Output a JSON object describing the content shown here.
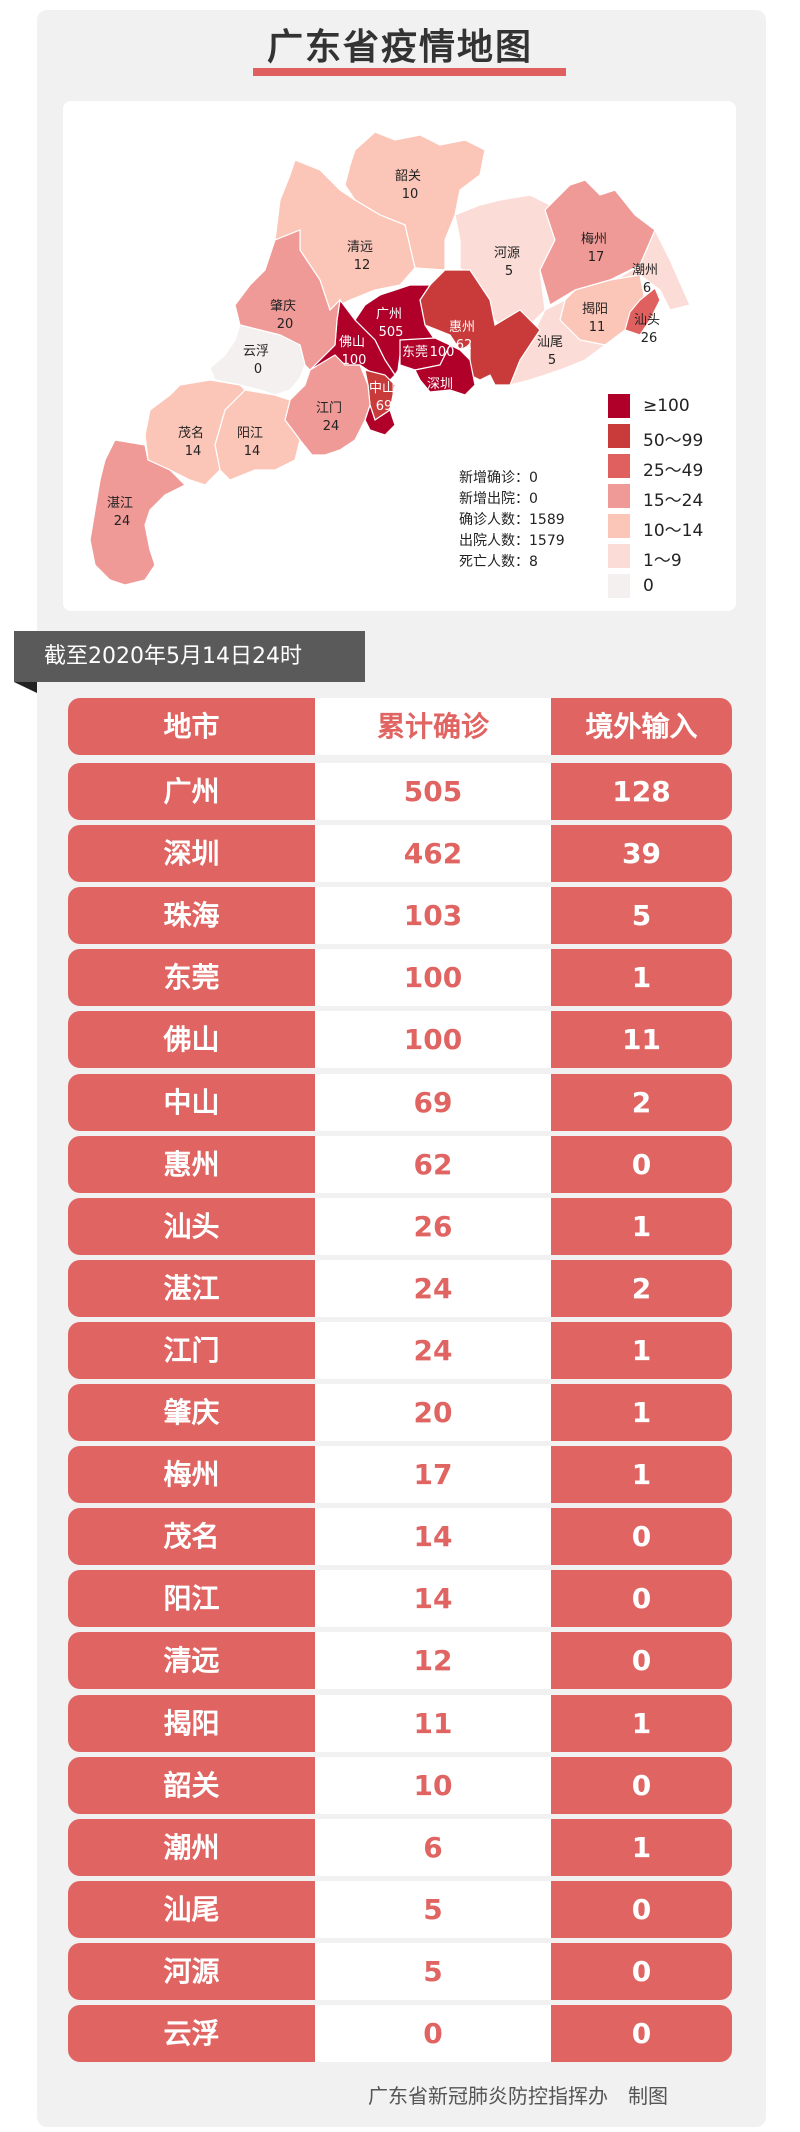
{
  "title": "广东省疫情地图",
  "map": {
    "regions": [
      {
        "name": "韶关",
        "value": "10",
        "level": 4
      },
      {
        "name": "清远",
        "value": "12",
        "level": 4
      },
      {
        "name": "河源",
        "value": "5",
        "level": 5
      },
      {
        "name": "梅州",
        "value": "17",
        "level": 3
      },
      {
        "name": "潮州",
        "value": "6",
        "level": 5
      },
      {
        "name": "揭阳",
        "value": "11",
        "level": 4
      },
      {
        "name": "汕头",
        "value": "26",
        "level": 2
      },
      {
        "name": "汕尾",
        "value": "5",
        "level": 5
      },
      {
        "name": "惠州",
        "value": "62",
        "level": 1
      },
      {
        "name": "广州",
        "value": "505",
        "level": 0
      },
      {
        "name": "东莞",
        "value": "100",
        "level": 0
      },
      {
        "name": "深圳",
        "value": "462",
        "level": 0
      },
      {
        "name": "佛山",
        "value": "100",
        "level": 0
      },
      {
        "name": "中山",
        "value": "69",
        "level": 1
      },
      {
        "name": "珠海",
        "value": "103",
        "level": 0
      },
      {
        "name": "江门",
        "value": "24",
        "level": 3
      },
      {
        "name": "肇庆",
        "value": "20",
        "level": 3
      },
      {
        "name": "云浮",
        "value": "0",
        "level": 6
      },
      {
        "name": "阳江",
        "value": "14",
        "level": 4
      },
      {
        "name": "茂名",
        "value": "14",
        "level": 4
      },
      {
        "name": "湛江",
        "value": "24",
        "level": 3
      }
    ],
    "stats": [
      {
        "label": "新增确诊",
        "value": "0"
      },
      {
        "label": "新增出院",
        "value": "0"
      },
      {
        "label": "确诊人数",
        "value": "1589"
      },
      {
        "label": "出院人数",
        "value": "1579"
      },
      {
        "label": "死亡人数",
        "value": "8"
      }
    ],
    "legend": [
      {
        "label": "≥100",
        "color": "#b0002a"
      },
      {
        "label": "50～99",
        "color": "#c93a3a"
      },
      {
        "label": "25～49",
        "color": "#e06060"
      },
      {
        "label": "15～24",
        "color": "#ef9a96"
      },
      {
        "label": "10～14",
        "color": "#fbc6b8"
      },
      {
        "label": "1～9",
        "color": "#fcdcd6"
      },
      {
        "label": "0",
        "color": "#f5f0f0"
      }
    ]
  },
  "date_label": "截至2020年5月14日24时",
  "table": {
    "headers": [
      "地市",
      "累计确诊",
      "境外输入"
    ],
    "rows": [
      [
        "广州",
        "505",
        "128"
      ],
      [
        "深圳",
        "462",
        "39"
      ],
      [
        "珠海",
        "103",
        "5"
      ],
      [
        "东莞",
        "100",
        "1"
      ],
      [
        "佛山",
        "100",
        "11"
      ],
      [
        "中山",
        "69",
        "2"
      ],
      [
        "惠州",
        "62",
        "0"
      ],
      [
        "汕头",
        "26",
        "1"
      ],
      [
        "湛江",
        "24",
        "2"
      ],
      [
        "江门",
        "24",
        "1"
      ],
      [
        "肇庆",
        "20",
        "1"
      ],
      [
        "梅州",
        "17",
        "1"
      ],
      [
        "茂名",
        "14",
        "0"
      ],
      [
        "阳江",
        "14",
        "0"
      ],
      [
        "清远",
        "12",
        "0"
      ],
      [
        "揭阳",
        "11",
        "1"
      ],
      [
        "韶关",
        "10",
        "0"
      ],
      [
        "潮州",
        "6",
        "1"
      ],
      [
        "汕尾",
        "5",
        "0"
      ],
      [
        "河源",
        "5",
        "0"
      ],
      [
        "云浮",
        "0",
        "0"
      ]
    ]
  },
  "footer": "广东省新冠肺炎防控指挥办　制图"
}
